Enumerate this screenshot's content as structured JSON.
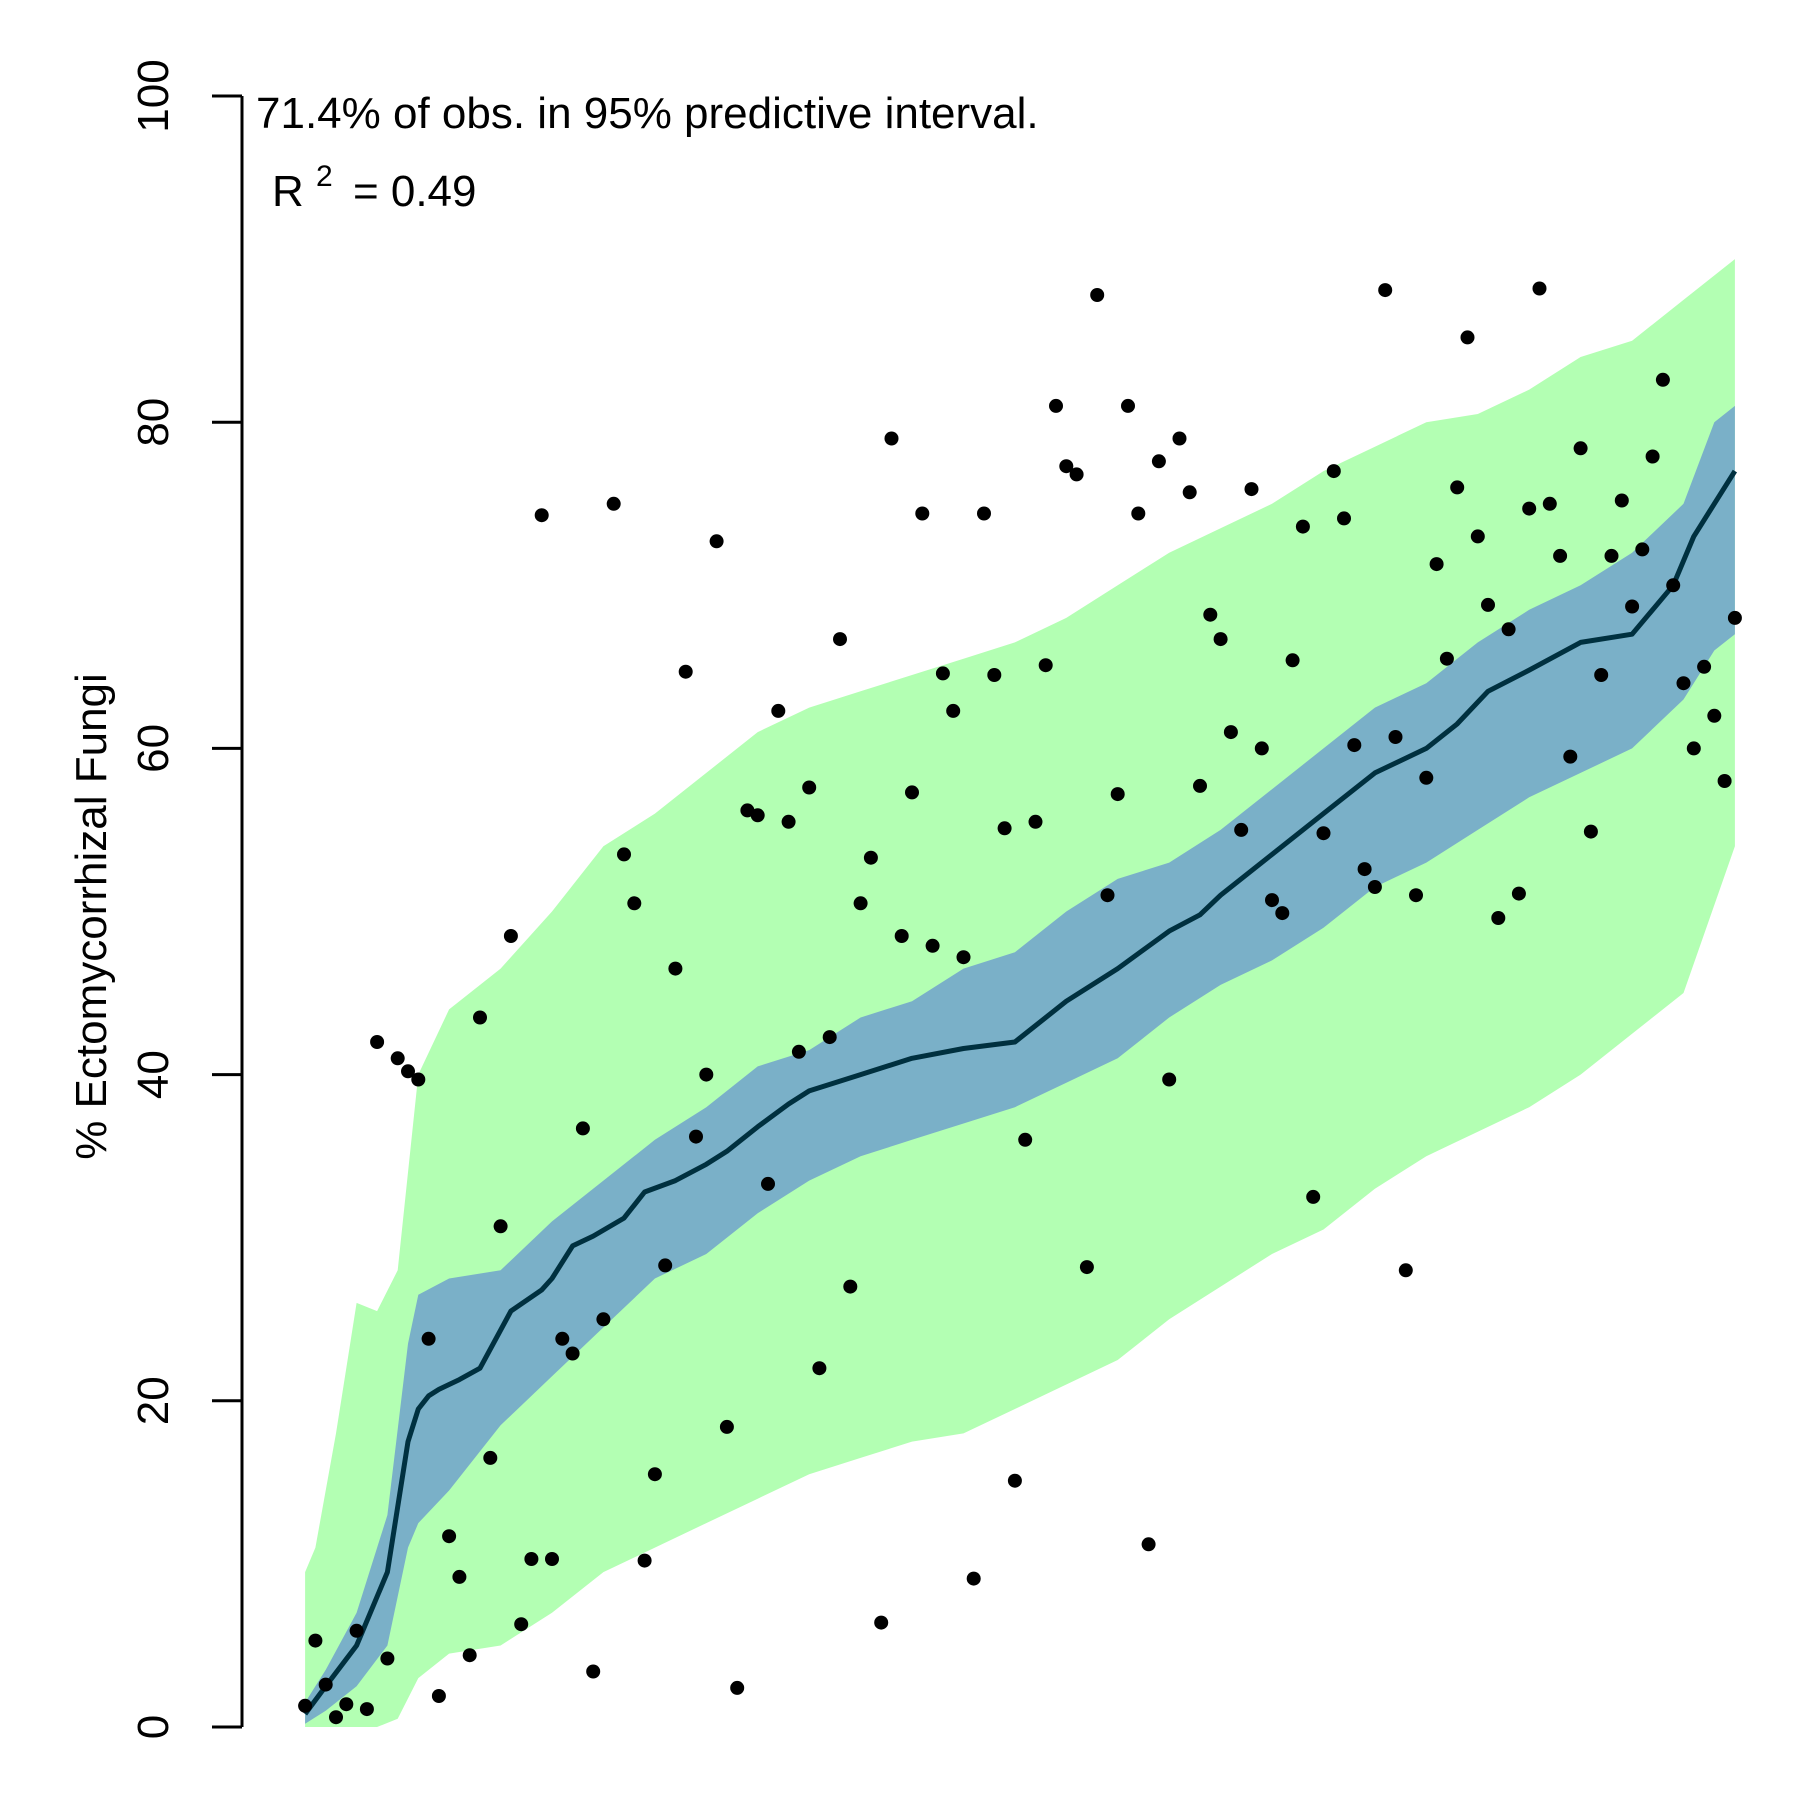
{
  "chart_data": {
    "type": "scatter",
    "title": "",
    "xlabel": "",
    "ylabel": "% Ectomycorrhizal Fungi",
    "ylim": [
      0,
      100
    ],
    "y_ticks": [
      0,
      20,
      40,
      60,
      80,
      100
    ],
    "y_tick_labels": [
      "0",
      "20",
      "40",
      "60",
      "80",
      "100"
    ],
    "x_axis_shown": false,
    "n_observations": 140,
    "grid": false,
    "annotations": {
      "coverage_text": "71.4% of obs. in 95% predictive interval.",
      "r2_label": "R",
      "r2_sup": "2",
      "r2_value": "= 0.49"
    },
    "colors": {
      "outer_band": "#b3ffb3",
      "inner_band": "#7ab0c8",
      "mean_line": "#00303f",
      "points": "#000000"
    },
    "mean_line": {
      "x": [
        1,
        3,
        6,
        9,
        11,
        12,
        13,
        14,
        15,
        16,
        18,
        21,
        24,
        25,
        27,
        29,
        32,
        34,
        37,
        40,
        42,
        45,
        48,
        50,
        55,
        60,
        65,
        70,
        75,
        80,
        85,
        88,
        90,
        95,
        100,
        105,
        110,
        113,
        116,
        120,
        125,
        130,
        134,
        136,
        138,
        140
      ],
      "y": [
        0.8,
        2.5,
        5.0,
        9.5,
        17.5,
        19.5,
        20.3,
        20.7,
        21.0,
        21.3,
        22.0,
        25.5,
        26.8,
        27.5,
        29.5,
        30.1,
        31.2,
        32.8,
        33.5,
        34.5,
        35.3,
        36.8,
        38.2,
        39.0,
        40.0,
        41.0,
        41.6,
        42.0,
        44.5,
        46.5,
        48.8,
        49.8,
        51.0,
        53.5,
        56.0,
        58.5,
        60.0,
        61.5,
        63.5,
        64.8,
        66.5,
        67.0,
        70.0,
        73.0,
        75.0,
        77.0
      ]
    },
    "inner_band": {
      "x": [
        1,
        3,
        6,
        9,
        11,
        12,
        15,
        20,
        25,
        30,
        35,
        40,
        45,
        50,
        55,
        60,
        65,
        70,
        75,
        80,
        85,
        90,
        95,
        100,
        105,
        110,
        115,
        120,
        125,
        130,
        135,
        138,
        140
      ],
      "lower": [
        0.2,
        1.0,
        2.5,
        5.0,
        11.0,
        12.5,
        14.5,
        18.5,
        21.5,
        24.5,
        27.5,
        29.0,
        31.5,
        33.5,
        35.0,
        36.0,
        37.0,
        38.0,
        39.5,
        41.0,
        43.5,
        45.5,
        47.0,
        49.0,
        51.5,
        53.0,
        55.0,
        57.0,
        58.5,
        60.0,
        63.0,
        66.0,
        67.0
      ],
      "upper": [
        1.5,
        3.5,
        7.0,
        13.0,
        23.5,
        26.5,
        27.5,
        28.0,
        31.0,
        33.5,
        36.0,
        38.0,
        40.5,
        41.5,
        43.5,
        44.5,
        46.5,
        47.5,
        50.0,
        52.0,
        53.0,
        55.0,
        57.5,
        60.0,
        62.5,
        64.0,
        66.5,
        68.5,
        70.0,
        72.0,
        75.0,
        80.0,
        81.0
      ]
    },
    "outer_band": {
      "x": [
        1,
        2,
        4,
        6,
        8,
        10,
        12,
        15,
        20,
        25,
        30,
        35,
        40,
        45,
        50,
        55,
        60,
        65,
        70,
        75,
        80,
        85,
        90,
        95,
        100,
        105,
        110,
        115,
        120,
        125,
        130,
        135,
        140
      ],
      "lower": [
        0.0,
        0.0,
        0.0,
        0.0,
        0.0,
        0.5,
        3.0,
        4.5,
        5.0,
        7.0,
        9.5,
        11.0,
        12.5,
        14.0,
        15.5,
        16.5,
        17.5,
        18.0,
        19.5,
        21.0,
        22.5,
        25.0,
        27.0,
        29.0,
        30.5,
        33.0,
        35.0,
        36.5,
        38.0,
        40.0,
        42.5,
        45.0,
        54.0
      ],
      "upper": [
        9.5,
        11.0,
        18.0,
        26.0,
        25.5,
        28.0,
        40.0,
        44.0,
        46.5,
        50.0,
        54.0,
        56.0,
        58.5,
        61.0,
        62.5,
        63.5,
        64.5,
        65.5,
        66.5,
        68.0,
        70.0,
        72.0,
        73.5,
        75.0,
        77.0,
        78.5,
        80.0,
        80.5,
        82.0,
        84.0,
        85.0,
        87.5,
        90.0
      ]
    },
    "points": {
      "x": [
        1,
        2,
        3,
        4,
        5,
        6,
        7,
        8,
        9,
        10,
        11,
        12,
        13,
        14,
        15,
        16,
        17,
        18,
        19,
        20,
        21,
        22,
        23,
        24,
        25,
        26,
        27,
        28,
        29,
        30,
        31,
        32,
        33,
        34,
        35,
        36,
        37,
        38,
        39,
        40,
        41,
        42,
        43,
        44,
        45,
        46,
        47,
        48,
        49,
        50,
        51,
        52,
        53,
        54,
        55,
        56,
        57,
        58,
        59,
        60,
        61,
        62,
        63,
        64,
        65,
        66,
        67,
        68,
        69,
        70,
        71,
        72,
        73,
        74,
        75,
        76,
        77,
        78,
        79,
        80,
        81,
        82,
        83,
        84,
        85,
        86,
        87,
        88,
        89,
        90,
        91,
        92,
        93,
        94,
        95,
        96,
        97,
        98,
        99,
        100,
        101,
        102,
        103,
        104,
        105,
        106,
        107,
        108,
        109,
        110,
        111,
        112,
        113,
        114,
        115,
        116,
        117,
        118,
        119,
        120,
        121,
        122,
        123,
        124,
        125,
        126,
        127,
        128,
        129,
        130,
        131,
        132,
        133,
        134,
        135,
        136,
        137,
        138,
        139,
        140
      ],
      "y": [
        1.3,
        5.3,
        2.6,
        0.6,
        1.4,
        5.9,
        1.1,
        42.0,
        4.2,
        41.0,
        40.2,
        39.7,
        23.8,
        1.9,
        11.7,
        9.2,
        4.4,
        43.5,
        16.5,
        30.7,
        48.5,
        6.3,
        10.3,
        74.3,
        10.3,
        23.8,
        22.9,
        36.7,
        3.4,
        25.0,
        75.0,
        53.5,
        50.5,
        10.2,
        15.5,
        28.3,
        46.5,
        64.7,
        36.2,
        40.0,
        72.7,
        18.4,
        2.4,
        56.2,
        55.9,
        33.3,
        62.3,
        55.5,
        41.4,
        57.6,
        22.0,
        42.3,
        66.7,
        27.0,
        50.5,
        53.3,
        6.4,
        79.0,
        48.5,
        57.3,
        74.4,
        47.9,
        64.6,
        62.3,
        47.2,
        9.1,
        74.4,
        64.5,
        55.1,
        15.1,
        36.0,
        55.5,
        65.1,
        81.0,
        77.3,
        76.8,
        28.2,
        87.8,
        51.0,
        57.2,
        81.0,
        74.4,
        11.2,
        77.6,
        39.7,
        79.0,
        75.7,
        57.7,
        68.2,
        66.7,
        61.0,
        55.0,
        75.9,
        60.0,
        50.7,
        49.9,
        65.4,
        73.6,
        32.5,
        54.8,
        77.0,
        74.1,
        60.2,
        52.6,
        51.5,
        88.1,
        60.7,
        28.0,
        51.0,
        58.2,
        71.3,
        65.5,
        76.0,
        85.2,
        73.0,
        68.8,
        49.6,
        67.3,
        51.1,
        74.7,
        88.2,
        75.0,
        71.8,
        59.5,
        78.4,
        54.9,
        64.5,
        71.8,
        75.2,
        68.7,
        72.2,
        77.9,
        82.6,
        70.0,
        64.0,
        60.0,
        65.0,
        62.0,
        58.0,
        68.0
      ]
    }
  }
}
